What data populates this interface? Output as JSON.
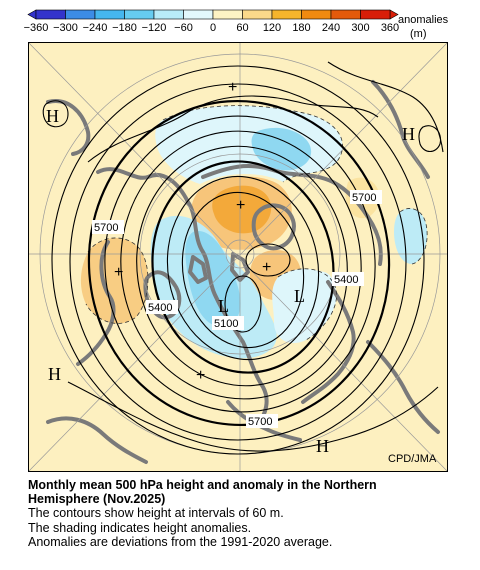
{
  "colorbar": {
    "ticks": [
      "−360",
      "−300",
      "−240",
      "−180",
      "−120",
      "−60",
      "0",
      "60",
      "120",
      "180",
      "240",
      "300",
      "360"
    ],
    "unit_line1": "anomalies",
    "unit_line2": "(m)",
    "colors": [
      "#3333cc",
      "#3c8ce6",
      "#45b6ee",
      "#66ccf0",
      "#b8ecf8",
      "#e2f8fc",
      "#fdf3c4",
      "#fbd98a",
      "#f6b52c",
      "#f08a10",
      "#e45a0a",
      "#d81e08"
    ]
  },
  "map": {
    "contour_labels": [
      "5700",
      "5700",
      "5400",
      "5400",
      "5100",
      "5700"
    ],
    "highs_lows": [
      "H",
      "H",
      "H",
      "H",
      "L",
      "L"
    ],
    "plus_marks": [
      "+",
      "+",
      "+",
      "+",
      "+"
    ],
    "credit": "CPD/JMA",
    "colors": {
      "background": "#fdf0c0",
      "land": "#7a7a7a",
      "positive_light": "#fbe3a0",
      "positive_mid": "#f7c57a",
      "positive_strong": "#f3a93a",
      "negative_light": "#def6fb",
      "negative_mid": "#bdebf6",
      "negative_strong": "#8fd8f1"
    }
  },
  "caption": {
    "title_line1": "Monthly mean 500 hPa height and anomaly in the Northern",
    "title_line2": "Hemisphere (Nov.2025)",
    "line1": "The contours show height at intervals of 60 m.",
    "line2": "The shading indicates height anomalies.",
    "line3": "Anomalies are deviations from the 1991-2020 average."
  }
}
